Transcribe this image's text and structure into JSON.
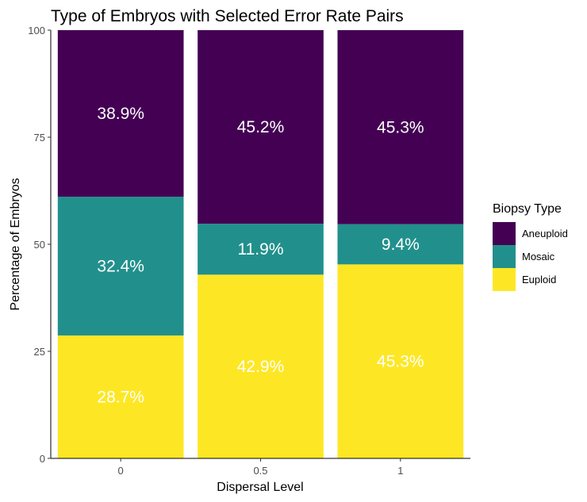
{
  "chart_data": {
    "type": "bar",
    "stacked": true,
    "title": "Type of Embryos with Selected Error Rate Pairs",
    "xlabel": "Dispersal Level",
    "ylabel": "Percentage of Embryos",
    "categories": [
      "0",
      "0.5",
      "1"
    ],
    "ylim": [
      0,
      100
    ],
    "yticks": [
      0,
      25,
      50,
      75,
      100
    ],
    "grid": false,
    "legend": {
      "title": "Biopsy Type",
      "position": "right"
    },
    "series": [
      {
        "name": "Euploid",
        "color": "#FDE725",
        "values": [
          28.7,
          42.9,
          45.3
        ],
        "labels": [
          "28.7%",
          "42.9%",
          "45.3%"
        ]
      },
      {
        "name": "Mosaic",
        "color": "#21908C",
        "values": [
          32.4,
          11.9,
          9.4
        ],
        "labels": [
          "32.4%",
          "11.9%",
          "9.4%"
        ]
      },
      {
        "name": "Aneuploid",
        "color": "#440154",
        "values": [
          38.9,
          45.2,
          45.3
        ],
        "labels": [
          "38.9%",
          "45.2%",
          "45.3%"
        ]
      }
    ],
    "legend_order": [
      "Aneuploid",
      "Mosaic",
      "Euploid"
    ]
  }
}
